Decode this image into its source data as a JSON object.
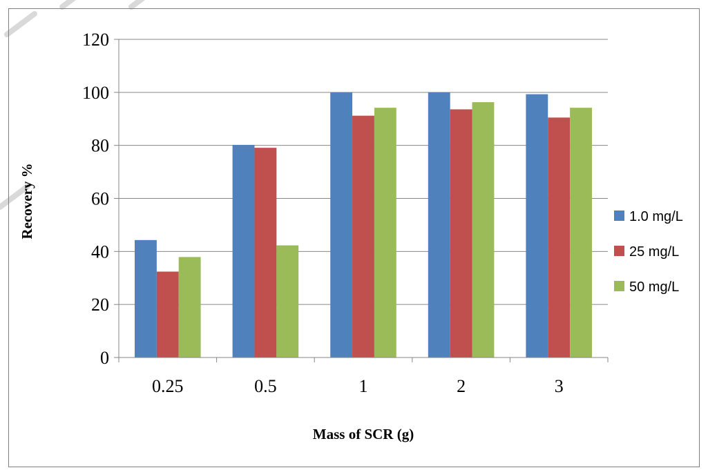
{
  "chart_data": {
    "type": "bar",
    "title": "",
    "xlabel": "Mass of SCR (g)",
    "ylabel": "Recovery %",
    "categories": [
      "0.25",
      "0.5",
      "1",
      "2",
      "3"
    ],
    "ylim": [
      0,
      120
    ],
    "yticks": [
      0,
      20,
      40,
      60,
      80,
      100,
      120
    ],
    "grid": "horizontal",
    "legend_position": "right",
    "series": [
      {
        "name": "1.0 mg/L",
        "color": "#4F81BD",
        "values": [
          44.3,
          80.2,
          100,
          100,
          99.3
        ]
      },
      {
        "name": "25 mg/L",
        "color": "#C0504D",
        "values": [
          32.4,
          79.1,
          91.2,
          93.6,
          90.5
        ]
      },
      {
        "name": "50 mg/L",
        "color": "#9BBB59",
        "values": [
          37.9,
          42.3,
          94.2,
          96.3,
          94.2
        ]
      }
    ]
  }
}
